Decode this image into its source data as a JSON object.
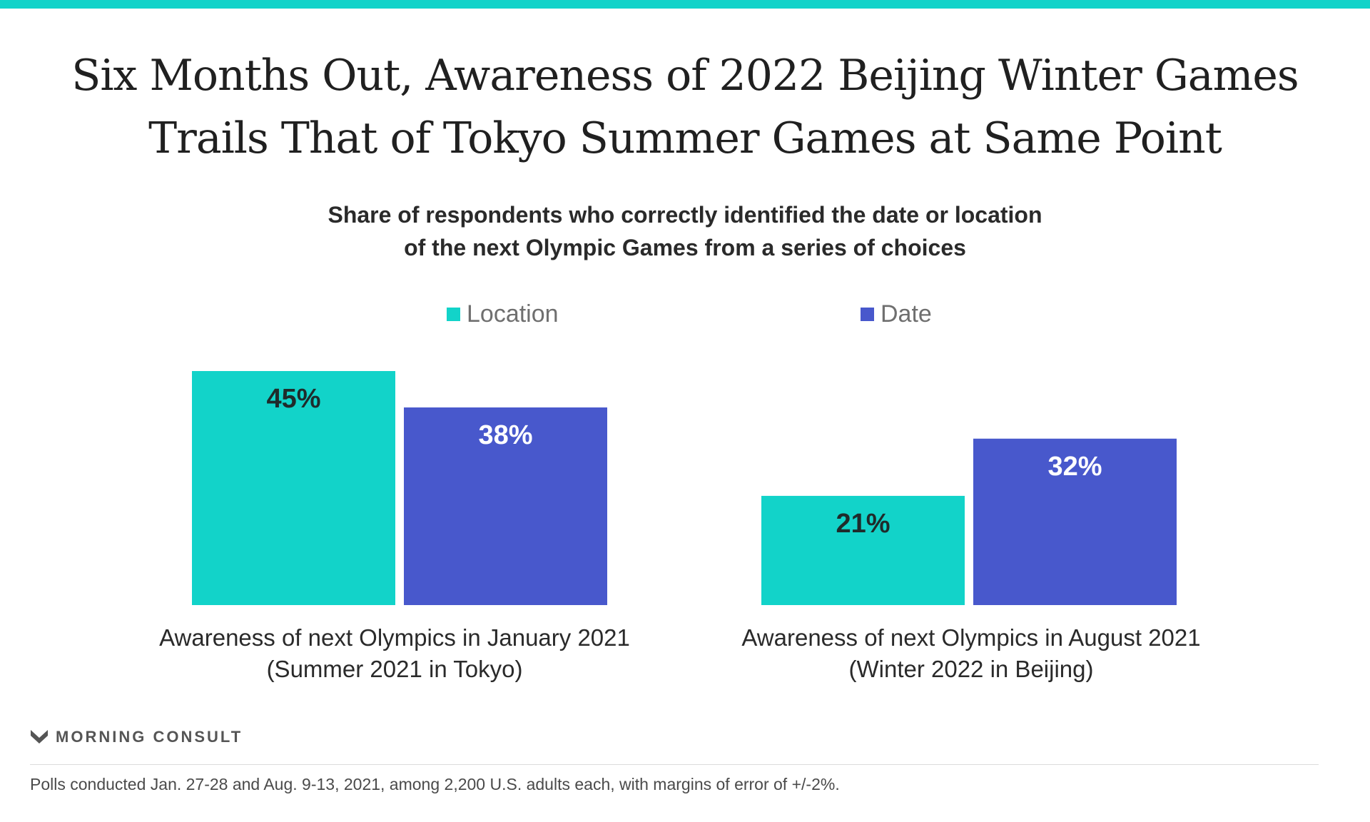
{
  "chart_data": {
    "type": "bar",
    "title": "Six Months Out, Awareness of 2022 Beijing Winter Games Trails That of Tokyo Summer Games at Same Point",
    "subtitle_lines": [
      "Share of respondents who correctly identified the date or location",
      "of the next Olympic Games from a series of choices"
    ],
    "categories": [
      [
        "Awareness of next Olympics in January 2021",
        "(Summer 2021 in Tokyo)"
      ],
      [
        "Awareness of next Olympics in August 2021",
        "(Winter 2022 in Beijing)"
      ]
    ],
    "series": [
      {
        "name": "Location",
        "values": [
          45,
          21
        ],
        "color": "#12d3c9",
        "label_color": "#1f2b2b"
      },
      {
        "name": "Date",
        "values": [
          38,
          32
        ],
        "color": "#4858cc",
        "label_color": "#ffffff"
      }
    ],
    "value_suffix": "%",
    "ylim": [
      0,
      45
    ],
    "grid": false,
    "legend_position": "top"
  },
  "branding": {
    "name": "MORNING CONSULT",
    "logo_icon": "morning-consult-m-icon"
  },
  "footnote": "Polls conducted Jan. 27-28 and Aug. 9-13, 2021, among 2,200 U.S. adults each, with margins of error of +/-2%."
}
